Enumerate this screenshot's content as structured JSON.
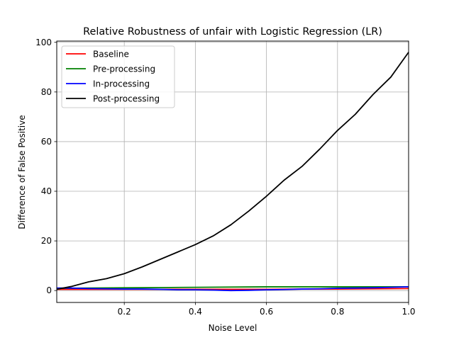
{
  "chart_data": {
    "type": "line",
    "title": "Relative Robustness of unfair with Logistic Regression (LR)",
    "xlabel": "Noise Level",
    "ylabel": "Difference of False Positive",
    "xlim": [
      0.01,
      1.0
    ],
    "ylim": [
      -4.8,
      100.5
    ],
    "xticks": [
      0.2,
      0.4,
      0.6,
      0.8,
      1.0
    ],
    "xtick_labels": [
      "0.2",
      "0.4",
      "0.6",
      "0.8",
      "1.0"
    ],
    "yticks": [
      0,
      20,
      40,
      60,
      80,
      100
    ],
    "ytick_labels": [
      "0",
      "20",
      "40",
      "60",
      "80",
      "100"
    ],
    "grid": true,
    "legend_position": "upper left",
    "series": [
      {
        "name": "Baseline",
        "color": "#ff0000",
        "x": [
          0.01,
          0.1,
          0.2,
          0.3,
          0.4,
          0.5,
          0.6,
          0.7,
          0.8,
          0.9,
          1.0
        ],
        "y": [
          0.5,
          0.5,
          0.5,
          0.5,
          0.5,
          0.5,
          0.5,
          0.6,
          0.6,
          0.7,
          0.8
        ]
      },
      {
        "name": "Pre-processing",
        "color": "#008000",
        "x": [
          0.01,
          0.1,
          0.2,
          0.3,
          0.4,
          0.5,
          0.6,
          0.7,
          0.8,
          0.9,
          1.0
        ],
        "y": [
          0.9,
          1.0,
          1.1,
          1.2,
          1.3,
          1.4,
          1.5,
          1.5,
          1.5,
          1.5,
          1.5
        ]
      },
      {
        "name": "In-processing",
        "color": "#0000ff",
        "x": [
          0.01,
          0.05,
          0.1,
          0.15,
          0.2,
          0.25,
          0.3,
          0.35,
          0.4,
          0.45,
          0.5,
          0.55,
          0.6,
          0.65,
          0.7,
          0.75,
          0.8,
          0.85,
          0.9,
          0.95,
          1.0
        ],
        "y": [
          1.0,
          1.0,
          0.8,
          0.7,
          0.6,
          0.6,
          0.5,
          0.3,
          0.3,
          0.2,
          0.0,
          0.1,
          0.3,
          0.4,
          0.6,
          0.7,
          0.9,
          1.0,
          1.1,
          1.3,
          1.5
        ]
      },
      {
        "name": "Post-processing",
        "color": "#000000",
        "x": [
          0.01,
          0.05,
          0.1,
          0.15,
          0.2,
          0.25,
          0.3,
          0.35,
          0.4,
          0.45,
          0.5,
          0.55,
          0.6,
          0.65,
          0.7,
          0.75,
          0.8,
          0.85,
          0.9,
          0.95,
          1.0
        ],
        "y": [
          0.5,
          1.6,
          3.5,
          4.8,
          6.8,
          9.5,
          12.5,
          15.5,
          18.5,
          22.0,
          26.5,
          32.0,
          38.0,
          44.5,
          50.0,
          57.0,
          64.5,
          71.0,
          79.0,
          86.0,
          96.0
        ]
      }
    ]
  }
}
